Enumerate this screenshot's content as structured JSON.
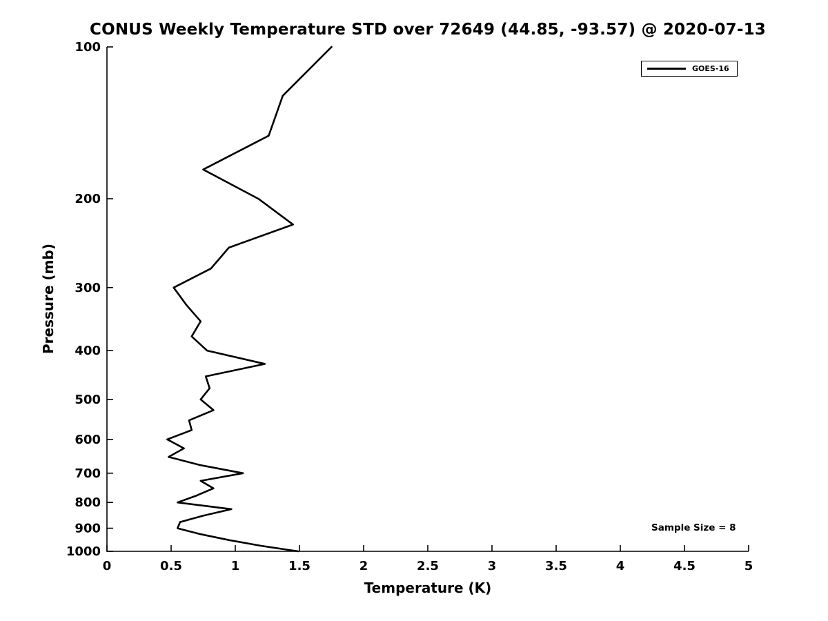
{
  "chart_data": {
    "type": "line",
    "title": "CONUS Weekly Temperature STD over 72649 (44.85, -93.57) @ 2020-07-13",
    "xlabel": "Temperature (K)",
    "ylabel": "Pressure (mb)",
    "xlim": [
      0,
      5
    ],
    "ylim": [
      100,
      1000
    ],
    "y_scale": "log",
    "y_inverted": true,
    "grid": false,
    "x_ticks": [
      0,
      0.5,
      1,
      1.5,
      2,
      2.5,
      3,
      3.5,
      4,
      4.5,
      5
    ],
    "x_tick_labels": [
      "0",
      "0.5",
      "1",
      "1.5",
      "2",
      "2.5",
      "3",
      "3.5",
      "4",
      "4.5",
      "5"
    ],
    "y_ticks": [
      100,
      200,
      300,
      400,
      500,
      600,
      700,
      800,
      900,
      1000
    ],
    "y_tick_labels": [
      "100",
      "200",
      "300",
      "400",
      "500",
      "600",
      "700",
      "800",
      "900",
      "1000"
    ],
    "line_color": "#000000",
    "legend": {
      "position": "top-right",
      "entries": [
        "GOES-16"
      ]
    },
    "annotation": "Sample Size = 8",
    "series": [
      {
        "name": "GOES-16",
        "color": "#000000",
        "pressure_mb": [
          100,
          125,
          150,
          175,
          200,
          225,
          250,
          275,
          300,
          325,
          350,
          375,
          400,
          425,
          450,
          475,
          500,
          525,
          550,
          575,
          600,
          625,
          650,
          675,
          700,
          725,
          750,
          775,
          800,
          825,
          850,
          875,
          900,
          925,
          950,
          975,
          1000
        ],
        "temperature_K": [
          1.75,
          1.37,
          1.26,
          0.75,
          1.18,
          1.45,
          0.95,
          0.81,
          0.52,
          0.62,
          0.73,
          0.66,
          0.78,
          1.23,
          0.77,
          0.8,
          0.73,
          0.83,
          0.64,
          0.66,
          0.47,
          0.6,
          0.48,
          0.73,
          1.06,
          0.73,
          0.83,
          0.7,
          0.55,
          0.97,
          0.75,
          0.57,
          0.55,
          0.73,
          0.95,
          1.2,
          1.49
        ]
      }
    ]
  }
}
